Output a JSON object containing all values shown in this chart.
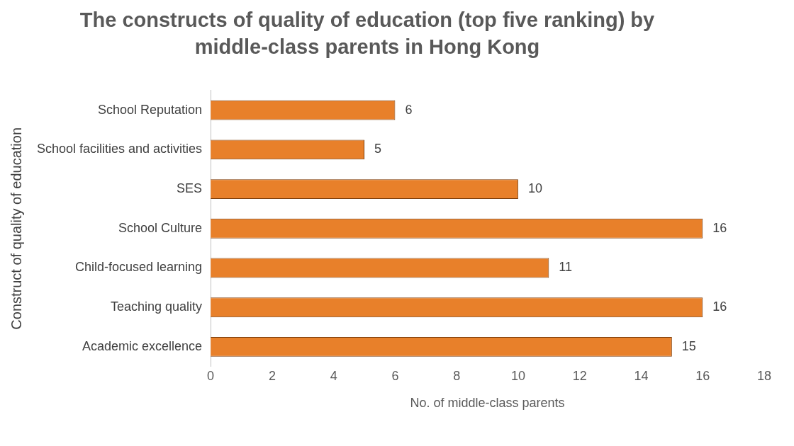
{
  "chart_data": {
    "type": "bar",
    "orientation": "horizontal",
    "title": "The constructs of quality of education (top five ranking) by middle-class parents in Hong Kong",
    "categories": [
      "School Reputation",
      "School facilities and activities",
      "SES",
      "School Culture",
      "Child-focused learning",
      "Teaching quality",
      "Academic excellence"
    ],
    "values": [
      6,
      5,
      10,
      16,
      11,
      16,
      15
    ],
    "color": "#e8802a",
    "xlim": [
      0,
      18
    ],
    "xticks": [
      0,
      2,
      4,
      6,
      8,
      10,
      12,
      14,
      16,
      18
    ],
    "xlabel": "No. of middle-class parents",
    "ylabel": "Construct of quality of education",
    "data_labels": true,
    "grid": false,
    "legend": false
  }
}
